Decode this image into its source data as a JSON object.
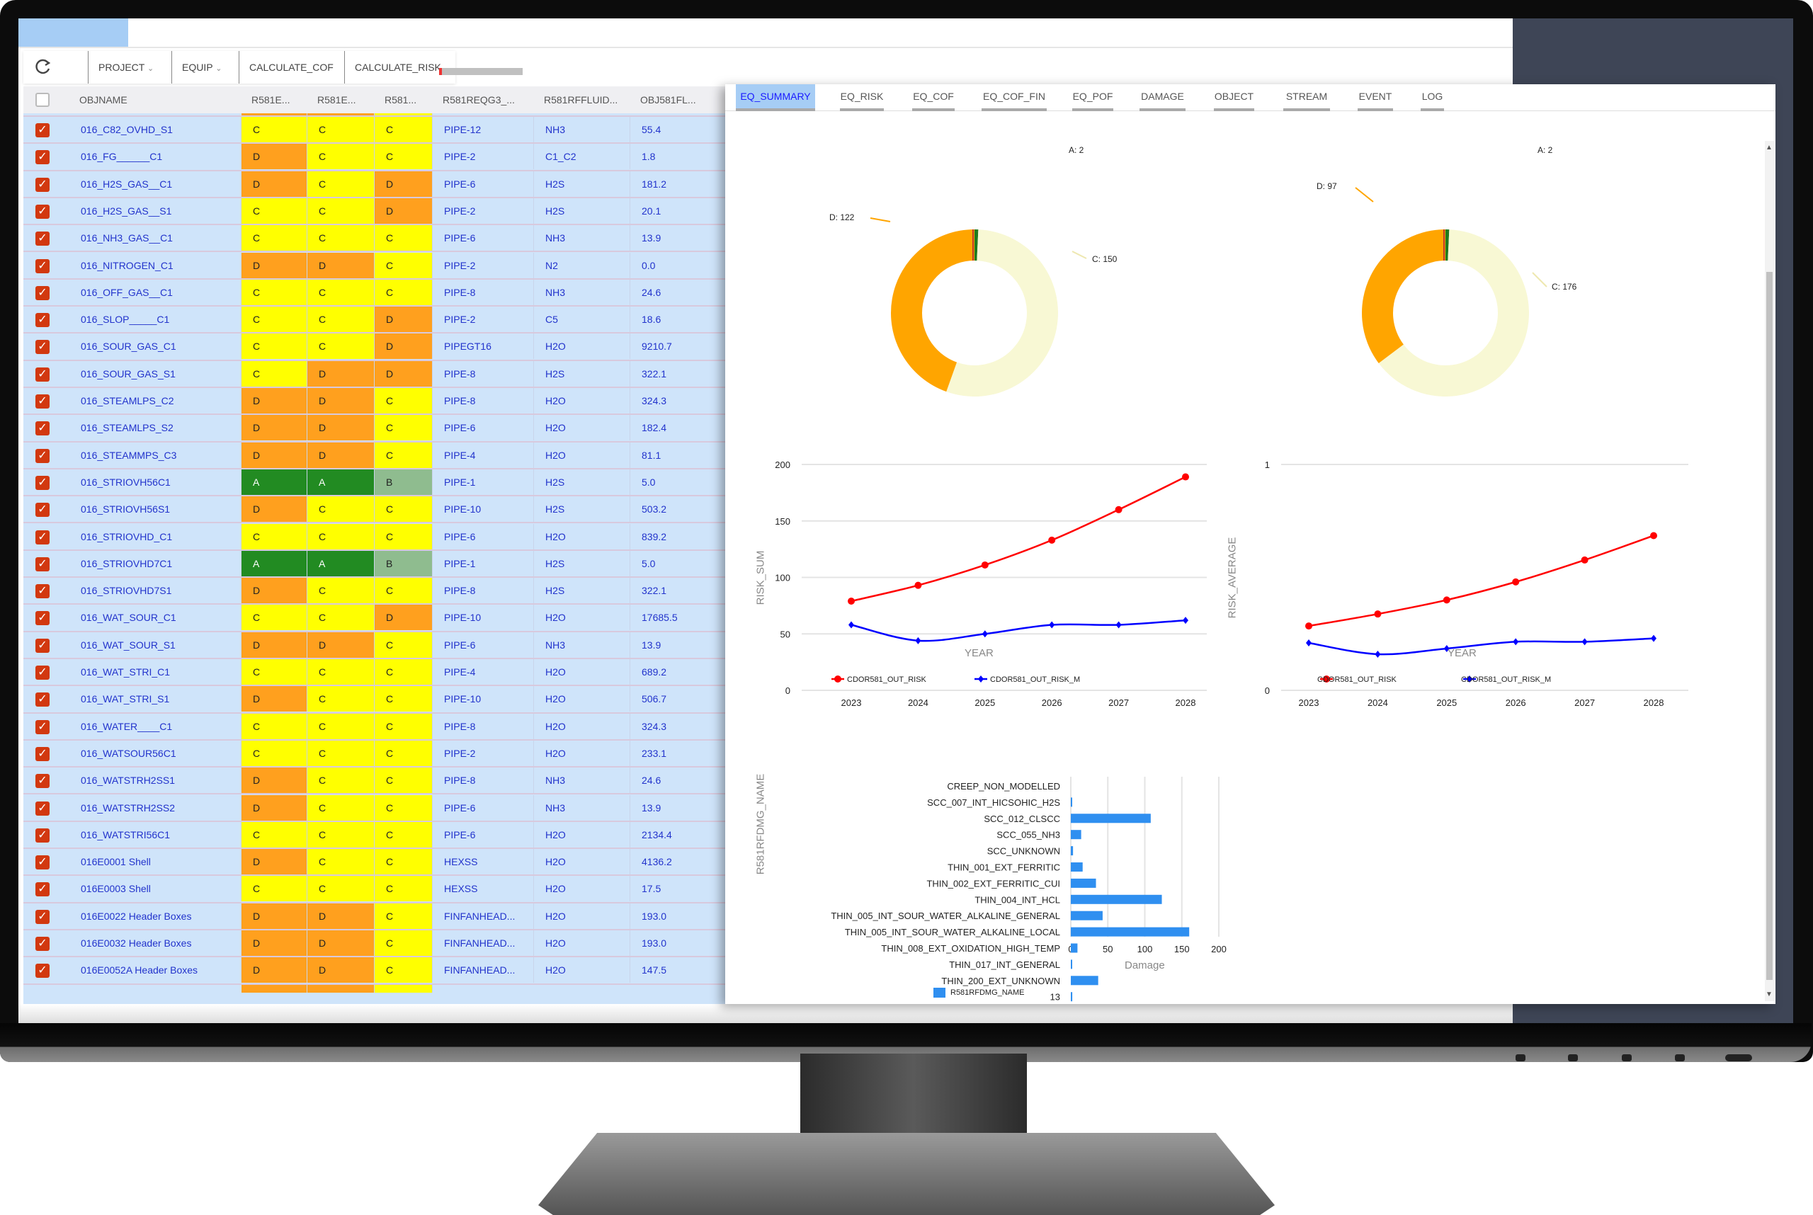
{
  "toolbar": {
    "refresh_icon": "refresh-icon",
    "project_label": "PROJECT",
    "equip_label": "EQUIP",
    "calc_cof_label": "CALCULATE_COF",
    "calc_risk_label": "CALCULATE_RISK",
    "progress": 0.03
  },
  "grid": {
    "columns": [
      "OBJNAME",
      "R581E...",
      "R581E...",
      "R581...",
      "R581REQG3_...",
      "R581RFFLUID...",
      "OBJ581FL..."
    ],
    "grade_colors": {
      "A": "#228b22",
      "B": "#8fbc8f",
      "C": "#ffff00",
      "D": "#ffa01e"
    },
    "rows": [
      [
        "016_C82_OVHD_S1",
        "C",
        "C",
        "C",
        "PIPE-12",
        "NH3",
        "55.4"
      ],
      [
        "016_FG______C1",
        "D",
        "C",
        "C",
        "PIPE-2",
        "C1_C2",
        "1.8"
      ],
      [
        "016_H2S_GAS__C1",
        "D",
        "C",
        "D",
        "PIPE-6",
        "H2S",
        "181.2"
      ],
      [
        "016_H2S_GAS__S1",
        "C",
        "C",
        "D",
        "PIPE-2",
        "H2S",
        "20.1"
      ],
      [
        "016_NH3_GAS__C1",
        "C",
        "C",
        "C",
        "PIPE-6",
        "NH3",
        "13.9"
      ],
      [
        "016_NITROGEN_C1",
        "D",
        "D",
        "C",
        "PIPE-2",
        "N2",
        "0.0"
      ],
      [
        "016_OFF_GAS__C1",
        "C",
        "C",
        "C",
        "PIPE-8",
        "NH3",
        "24.6"
      ],
      [
        "016_SLOP_____C1",
        "C",
        "C",
        "D",
        "PIPE-2",
        "C5",
        "18.6"
      ],
      [
        "016_SOUR_GAS_C1",
        "C",
        "C",
        "D",
        "PIPEGT16",
        "H2O",
        "9210.7"
      ],
      [
        "016_SOUR_GAS_S1",
        "C",
        "D",
        "D",
        "PIPE-8",
        "H2S",
        "322.1"
      ],
      [
        "016_STEAMLPS_C2",
        "D",
        "D",
        "C",
        "PIPE-8",
        "H2O",
        "324.3"
      ],
      [
        "016_STEAMLPS_S2",
        "D",
        "D",
        "C",
        "PIPE-6",
        "H2O",
        "182.4"
      ],
      [
        "016_STEAMMPS_C3",
        "D",
        "D",
        "C",
        "PIPE-4",
        "H2O",
        "81.1"
      ],
      [
        "016_STRIOVH56C1",
        "A",
        "A",
        "B",
        "PIPE-1",
        "H2S",
        "5.0"
      ],
      [
        "016_STRIOVH56S1",
        "D",
        "C",
        "C",
        "PIPE-10",
        "H2S",
        "503.2"
      ],
      [
        "016_STRIOVHD_C1",
        "C",
        "C",
        "C",
        "PIPE-6",
        "H2O",
        "839.2"
      ],
      [
        "016_STRIOVHD7C1",
        "A",
        "A",
        "B",
        "PIPE-1",
        "H2S",
        "5.0"
      ],
      [
        "016_STRIOVHD7S1",
        "D",
        "C",
        "C",
        "PIPE-8",
        "H2S",
        "322.1"
      ],
      [
        "016_WAT_SOUR_C1",
        "C",
        "C",
        "D",
        "PIPE-10",
        "H2O",
        "17685.5"
      ],
      [
        "016_WAT_SOUR_S1",
        "D",
        "D",
        "C",
        "PIPE-6",
        "NH3",
        "13.9"
      ],
      [
        "016_WAT_STRI_C1",
        "C",
        "C",
        "C",
        "PIPE-4",
        "H2O",
        "689.2"
      ],
      [
        "016_WAT_STRI_S1",
        "D",
        "C",
        "C",
        "PIPE-10",
        "H2O",
        "506.7"
      ],
      [
        "016_WATER____C1",
        "C",
        "C",
        "C",
        "PIPE-8",
        "H2O",
        "324.3"
      ],
      [
        "016_WATSOUR56C1",
        "C",
        "C",
        "C",
        "PIPE-2",
        "H2O",
        "233.1"
      ],
      [
        "016_WATSTRH2SS1",
        "D",
        "C",
        "C",
        "PIPE-8",
        "NH3",
        "24.6"
      ],
      [
        "016_WATSTRH2SS2",
        "D",
        "C",
        "C",
        "PIPE-6",
        "NH3",
        "13.9"
      ],
      [
        "016_WATSTRI56C1",
        "C",
        "C",
        "C",
        "PIPE-6",
        "H2O",
        "2134.4"
      ],
      [
        "016E0001 Shell",
        "D",
        "C",
        "C",
        "HEXSS",
        "H2O",
        "4136.2"
      ],
      [
        "016E0003 Shell",
        "C",
        "C",
        "C",
        "HEXSS",
        "H2O",
        "17.5"
      ],
      [
        "016E0022 Header Boxes",
        "D",
        "D",
        "C",
        "FINFANHEAD...",
        "H2O",
        "193.0"
      ],
      [
        "016E0032 Header Boxes",
        "D",
        "D",
        "C",
        "FINFANHEAD...",
        "H2O",
        "193.0"
      ],
      [
        "016E0052A Header Boxes",
        "D",
        "D",
        "C",
        "FINFANHEAD...",
        "H2O",
        "147.5"
      ]
    ]
  },
  "panel": {
    "tabs": [
      "EQ_SUMMARY",
      "EQ_RISK",
      "EQ_COF",
      "EQ_COF_FIN",
      "EQ_POF",
      "DAMAGE",
      "OBJECT",
      "STREAM",
      "EVENT",
      "LOG"
    ],
    "active_tab": 0
  },
  "chart_data": [
    {
      "type": "pie",
      "donut": true,
      "slices": [
        {
          "label": "A: 2",
          "value": 2,
          "color": "#1e7a1e"
        },
        {
          "label": "C: 150",
          "value": 150,
          "color": "#f8f8d4"
        },
        {
          "label": "D: 122",
          "value": 122,
          "color": "#ffa500"
        }
      ]
    },
    {
      "type": "pie",
      "donut": true,
      "slices": [
        {
          "label": "A: 2",
          "value": 2,
          "color": "#1e7a1e"
        },
        {
          "label": "C: 176",
          "value": 176,
          "color": "#f8f8d4"
        },
        {
          "label": "D: 97",
          "value": 97,
          "color": "#ffa500"
        }
      ]
    },
    {
      "type": "line",
      "xlabel": "YEAR",
      "ylabel": "RISK_SUM",
      "x": [
        "2023",
        "2024",
        "2025",
        "2026",
        "2027",
        "2028"
      ],
      "ylim": [
        0,
        200
      ],
      "yticks": [
        "0",
        "50",
        "100",
        "150",
        "200"
      ],
      "grid": true,
      "legend": "bottom",
      "series": [
        {
          "name": "CDOR581_OUT_RISK",
          "color": "#ff0000",
          "marker": "circle",
          "values": [
            79,
            93,
            111,
            133,
            160,
            189
          ]
        },
        {
          "name": "CDOR581_OUT_RISK_M",
          "color": "#0000ff",
          "marker": "diamond",
          "values": [
            58,
            44,
            50,
            58,
            58,
            62
          ]
        }
      ]
    },
    {
      "type": "line",
      "xlabel": "YEAR",
      "ylabel": "RISK_AVERAGE",
      "x": [
        "2023",
        "2024",
        "2025",
        "2026",
        "2027",
        "2028"
      ],
      "ylim": [
        0,
        1
      ],
      "yticks": [
        "0",
        "1"
      ],
      "grid": true,
      "legend": "bottom",
      "series": [
        {
          "name": "CDOR581_OUT_RISK",
          "color": "#ff0000",
          "marker": "circle",
          "values": [
            0.285,
            0.338,
            0.4,
            0.48,
            0.577,
            0.685
          ]
        },
        {
          "name": "CDOR581_OUT_RISK_M",
          "color": "#0000ff",
          "marker": "diamond",
          "values": [
            0.21,
            0.16,
            0.185,
            0.215,
            0.215,
            0.23
          ]
        }
      ]
    },
    {
      "type": "bar",
      "orientation": "horizontal",
      "xlabel": "Damage",
      "ylabel": "R581RFDMG_NAME",
      "xlim": [
        0,
        200
      ],
      "xticks": [
        "0",
        "50",
        "100",
        "150",
        "200"
      ],
      "grid": true,
      "legend": "bottom",
      "color": "#2f8ff0",
      "series_name": "R581RFDMG_NAME",
      "categories": [
        "CREEP_NON_MODELLED",
        "SCC_007_INT_HICSOHIC_H2S",
        "SCC_012_CLSCC",
        "SCC_055_NH3",
        "SCC_UNKNOWN",
        "THIN_001_EXT_FERRITIC",
        "THIN_002_EXT_FERRITIC_CUI",
        "THIN_004_INT_HCL",
        "THIN_005_INT_SOUR_WATER_ALKALINE_GENERAL",
        "THIN_005_INT_SOUR_WATER_ALKALINE_LOCAL",
        "THIN_008_EXT_OXIDATION_HIGH_TEMP",
        "THIN_017_INT_GENERAL",
        "THIN_200_EXT_UNKNOWN",
        "13"
      ],
      "values": [
        0,
        1,
        108,
        14,
        3,
        16,
        34,
        123,
        43,
        160,
        9,
        1,
        37,
        2
      ]
    }
  ]
}
